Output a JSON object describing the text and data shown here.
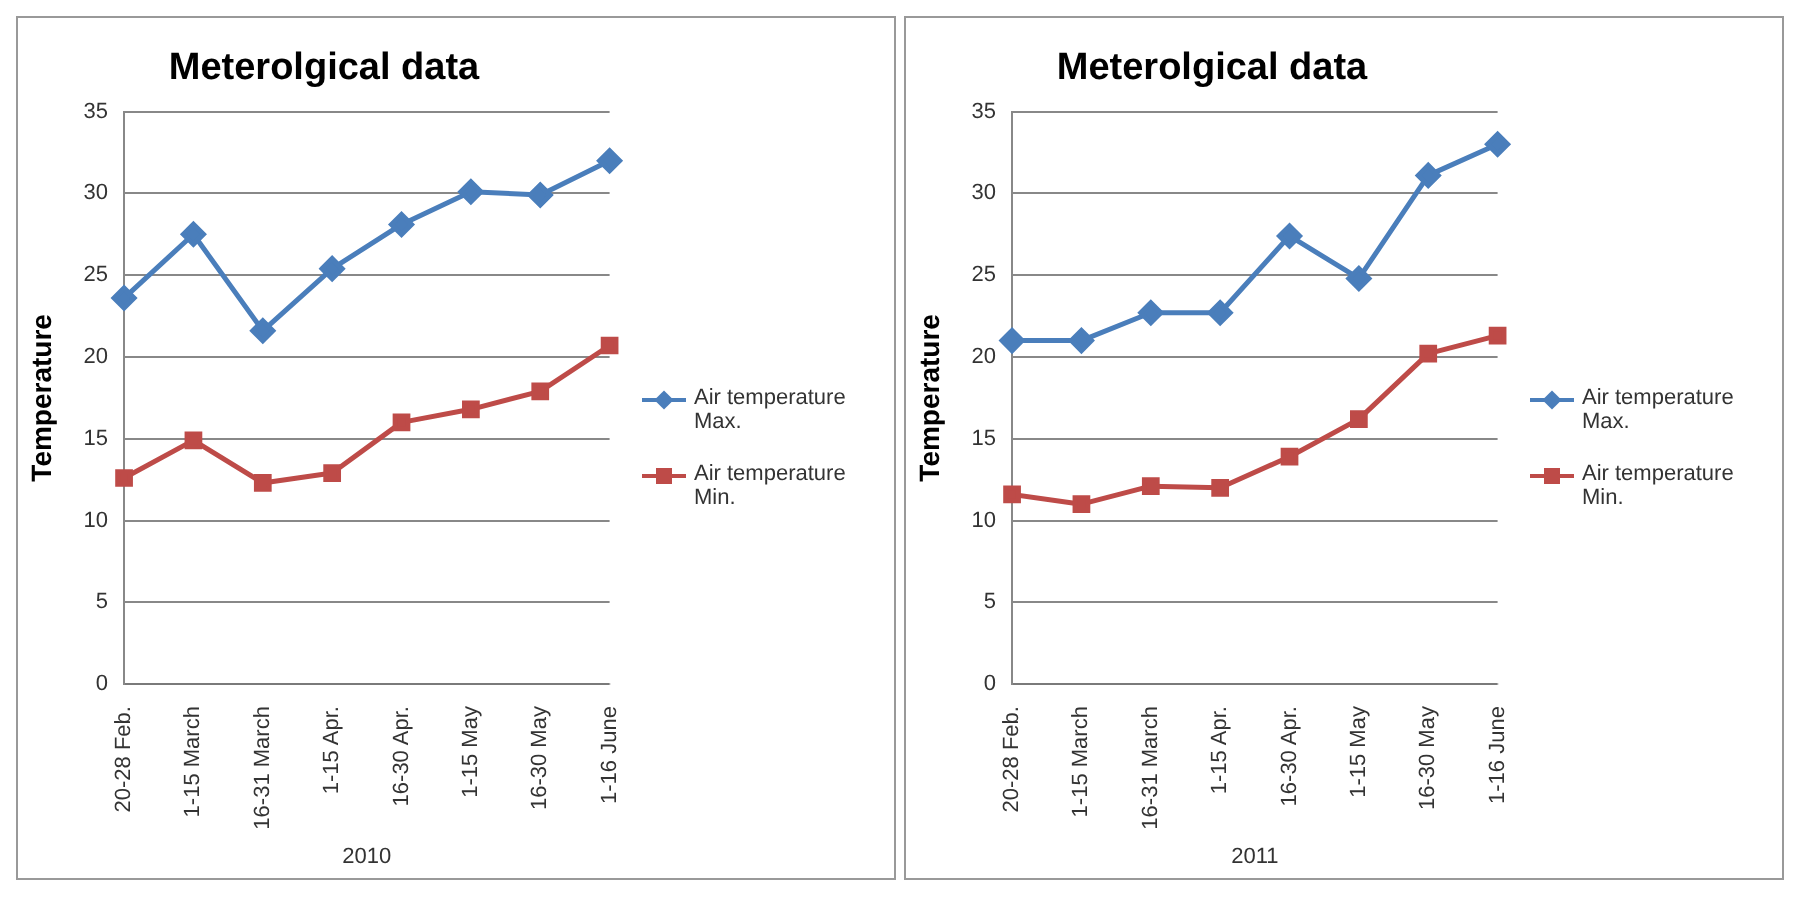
{
  "chart_data": [
    {
      "type": "line",
      "title": "Meterolgical data",
      "ylabel": "Temperature",
      "xlabel": "2010",
      "categories": [
        "20-28 Feb.",
        "1-15 March",
        "16-31 March",
        "1-15 Apr.",
        "16-30 Apr.",
        "1-15 May",
        "16-30 May",
        "1-16 June"
      ],
      "series": [
        {
          "name": "Air temperature Max.",
          "color": "#4a7ebb",
          "marker": "diamond",
          "values": [
            23.6,
            27.5,
            21.6,
            25.4,
            28.1,
            30.1,
            29.9,
            32.0
          ]
        },
        {
          "name": "Air temperature Min.",
          "color": "#be4b48",
          "marker": "square",
          "values": [
            12.6,
            14.9,
            12.3,
            12.9,
            16.0,
            16.8,
            17.9,
            20.7
          ]
        }
      ],
      "ylim": [
        0,
        35
      ],
      "yticks": [
        0,
        5,
        10,
        15,
        20,
        25,
        30,
        35
      ],
      "grid": "y",
      "legend": "right"
    },
    {
      "type": "line",
      "title": "Meterolgical data",
      "ylabel": "Temperature",
      "xlabel": "2011",
      "categories": [
        "20-28 Feb.",
        "1-15 March",
        "16-31 March",
        "1-15 Apr.",
        "16-30 Apr.",
        "1-15 May",
        "16-30 May",
        "1-16 June"
      ],
      "series": [
        {
          "name": "Air temperature Max.",
          "color": "#4a7ebb",
          "marker": "diamond",
          "values": [
            21.0,
            21.0,
            22.7,
            22.7,
            27.4,
            24.8,
            31.1,
            33.0
          ]
        },
        {
          "name": "Air temperature Min.",
          "color": "#be4b48",
          "marker": "square",
          "values": [
            11.6,
            11.0,
            12.1,
            12.0,
            13.9,
            16.2,
            20.2,
            21.3
          ]
        }
      ],
      "ylim": [
        0,
        35
      ],
      "yticks": [
        0,
        5,
        10,
        15,
        20,
        25,
        30,
        35
      ],
      "grid": "y",
      "legend": "right"
    }
  ]
}
